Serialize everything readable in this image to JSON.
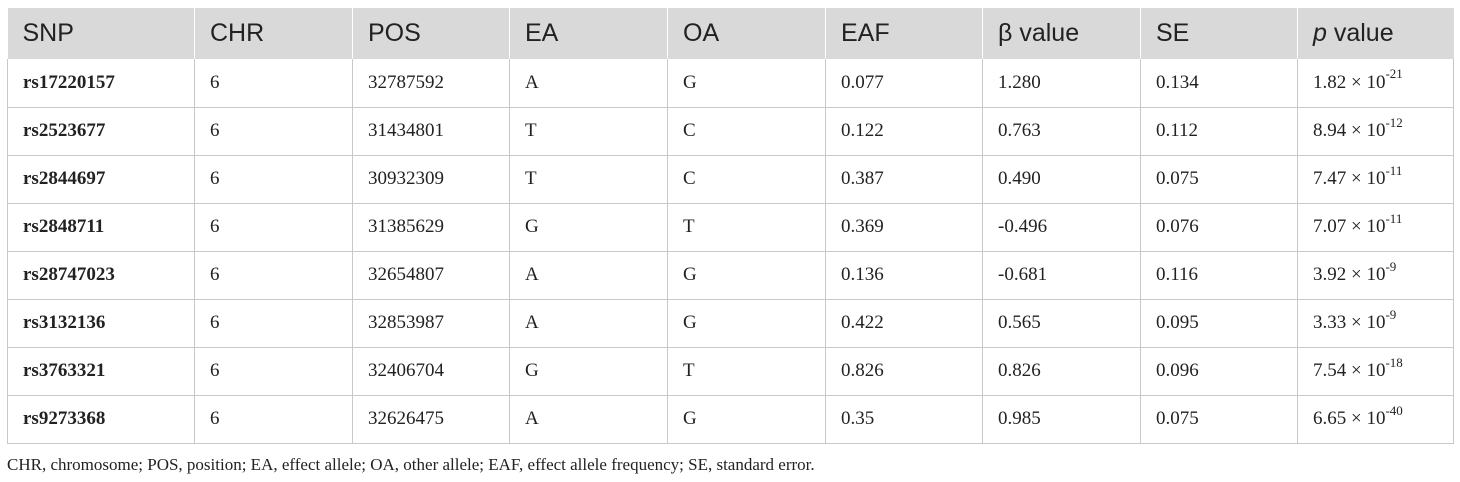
{
  "table": {
    "headers": {
      "snp": "SNP",
      "chr": "CHR",
      "pos": "POS",
      "ea": "EA",
      "oa": "OA",
      "eaf": "EAF",
      "beta": "β value",
      "se": "SE",
      "p_symbol": "p",
      "p_rest": " value"
    },
    "rows": [
      {
        "snp": "rs17220157",
        "chr": "6",
        "pos": "32787592",
        "ea": "A",
        "oa": "G",
        "eaf": "0.077",
        "beta": "1.280",
        "se": "0.134",
        "p_mantissa": "1.82 × 10",
        "p_exp": "-21"
      },
      {
        "snp": "rs2523677",
        "chr": "6",
        "pos": "31434801",
        "ea": "T",
        "oa": "C",
        "eaf": "0.122",
        "beta": "0.763",
        "se": "0.112",
        "p_mantissa": "8.94 × 10",
        "p_exp": "-12"
      },
      {
        "snp": "rs2844697",
        "chr": "6",
        "pos": "30932309",
        "ea": "T",
        "oa": "C",
        "eaf": "0.387",
        "beta": "0.490",
        "se": "0.075",
        "p_mantissa": "7.47 × 10",
        "p_exp": "-11"
      },
      {
        "snp": "rs2848711",
        "chr": "6",
        "pos": "31385629",
        "ea": "G",
        "oa": "T",
        "eaf": "0.369",
        "beta": "-0.496",
        "se": "0.076",
        "p_mantissa": "7.07 × 10",
        "p_exp": "-11"
      },
      {
        "snp": "rs28747023",
        "chr": "6",
        "pos": "32654807",
        "ea": "A",
        "oa": "G",
        "eaf": "0.136",
        "beta": "-0.681",
        "se": "0.116",
        "p_mantissa": "3.92 × 10",
        "p_exp": "-9"
      },
      {
        "snp": "rs3132136",
        "chr": "6",
        "pos": "32853987",
        "ea": "A",
        "oa": "G",
        "eaf": "0.422",
        "beta": "0.565",
        "se": "0.095",
        "p_mantissa": "3.33 × 10",
        "p_exp": "-9"
      },
      {
        "snp": "rs3763321",
        "chr": "6",
        "pos": "32406704",
        "ea": "G",
        "oa": "T",
        "eaf": "0.826",
        "beta": "0.826",
        "se": "0.096",
        "p_mantissa": "7.54 × 10",
        "p_exp": "-18"
      },
      {
        "snp": "rs9273368",
        "chr": "6",
        "pos": "32626475",
        "ea": "A",
        "oa": "G",
        "eaf": "0.35",
        "beta": "0.985",
        "se": "0.075",
        "p_mantissa": "6.65 × 10",
        "p_exp": "-40"
      }
    ]
  },
  "footnote": "CHR, chromosome; POS, position; EA, effect allele; OA, other allele; EAF, effect allele frequency; SE, standard error.",
  "colors": {
    "header_bg": "#d9d9d9",
    "border": "#c8c8c8",
    "text": "#222222"
  }
}
